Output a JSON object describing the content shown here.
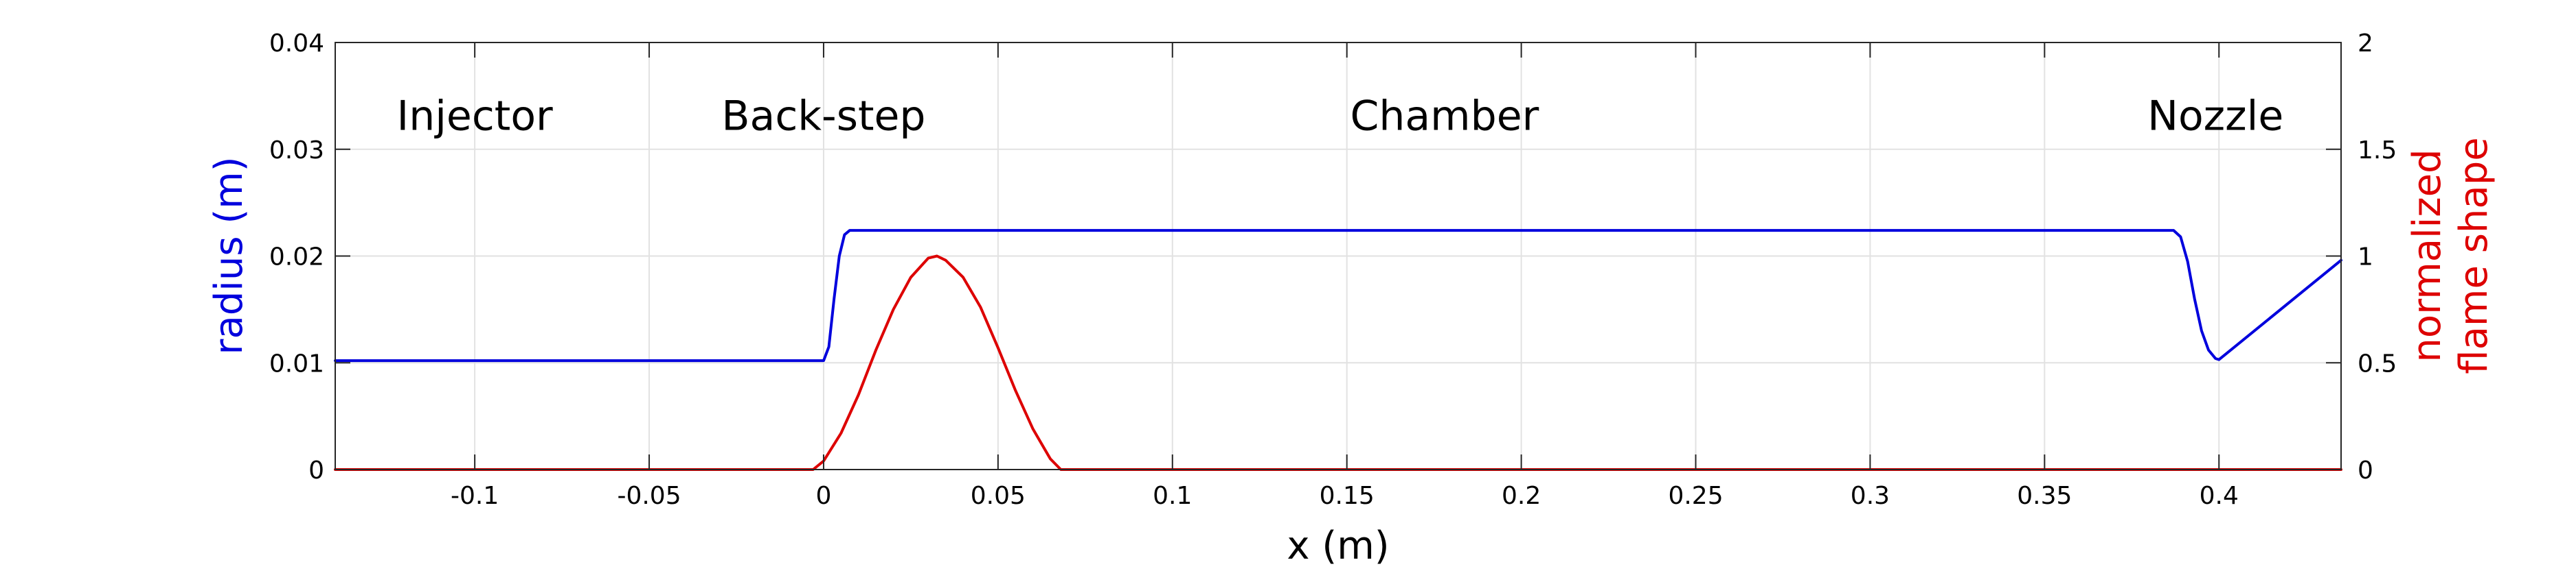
{
  "chart_data": {
    "type": "line",
    "xlabel": "x (m)",
    "ylabel_left": "radius (m)",
    "ylabel_right": [
      "normalized",
      "flame shape"
    ],
    "xlim": [
      -0.14,
      0.435
    ],
    "ylim_left": [
      0,
      0.04
    ],
    "ylim_right": [
      0,
      2
    ],
    "grid": true,
    "x_ticks": [
      {
        "value": -0.1,
        "label": "-0.1"
      },
      {
        "value": -0.05,
        "label": "-0.05"
      },
      {
        "value": 0,
        "label": "0"
      },
      {
        "value": 0.05,
        "label": "0.05"
      },
      {
        "value": 0.1,
        "label": "0.1"
      },
      {
        "value": 0.15,
        "label": "0.15"
      },
      {
        "value": 0.2,
        "label": "0.2"
      },
      {
        "value": 0.25,
        "label": "0.25"
      },
      {
        "value": 0.3,
        "label": "0.3"
      },
      {
        "value": 0.35,
        "label": "0.35"
      },
      {
        "value": 0.4,
        "label": "0.4"
      }
    ],
    "y_left_ticks": [
      {
        "value": 0,
        "label": "0"
      },
      {
        "value": 0.01,
        "label": "0.01"
      },
      {
        "value": 0.02,
        "label": "0.02"
      },
      {
        "value": 0.03,
        "label": "0.03"
      },
      {
        "value": 0.04,
        "label": "0.04"
      }
    ],
    "y_right_ticks": [
      {
        "value": 0,
        "label": "0"
      },
      {
        "value": 0.5,
        "label": "0.5"
      },
      {
        "value": 1,
        "label": "1"
      },
      {
        "value": 1.5,
        "label": "1.5"
      },
      {
        "value": 2,
        "label": "2"
      }
    ],
    "annotations": [
      {
        "text": "Injector",
        "x": -0.1,
        "y": 0.0318
      },
      {
        "text": "Back-step",
        "x": 0.0,
        "y": 0.0318
      },
      {
        "text": "Chamber",
        "x": 0.178,
        "y": 0.0318
      },
      {
        "text": "Nozzle",
        "x": 0.399,
        "y": 0.0318
      }
    ],
    "series": [
      {
        "axis": "left",
        "color": "#0000dd",
        "x": [
          -0.14,
          0.0,
          0.0015,
          0.003,
          0.0045,
          0.006,
          0.0075,
          0.2,
          0.387,
          0.389,
          0.391,
          0.393,
          0.395,
          0.397,
          0.399,
          0.4,
          0.435
        ],
        "y": [
          0.0102,
          0.0102,
          0.0115,
          0.016,
          0.02,
          0.022,
          0.0224,
          0.0224,
          0.0224,
          0.0218,
          0.0195,
          0.016,
          0.013,
          0.0112,
          0.0104,
          0.0103,
          0.0196
        ]
      },
      {
        "axis": "right",
        "color": "#dd0000",
        "x": [
          -0.14,
          -0.003,
          0.0,
          0.005,
          0.01,
          0.015,
          0.02,
          0.025,
          0.03,
          0.0325,
          0.035,
          0.04,
          0.045,
          0.05,
          0.055,
          0.06,
          0.065,
          0.068,
          0.435
        ],
        "y": [
          0,
          0,
          0.04,
          0.17,
          0.35,
          0.56,
          0.75,
          0.9,
          0.99,
          1.0,
          0.98,
          0.9,
          0.76,
          0.57,
          0.37,
          0.19,
          0.05,
          0,
          0
        ]
      }
    ]
  }
}
